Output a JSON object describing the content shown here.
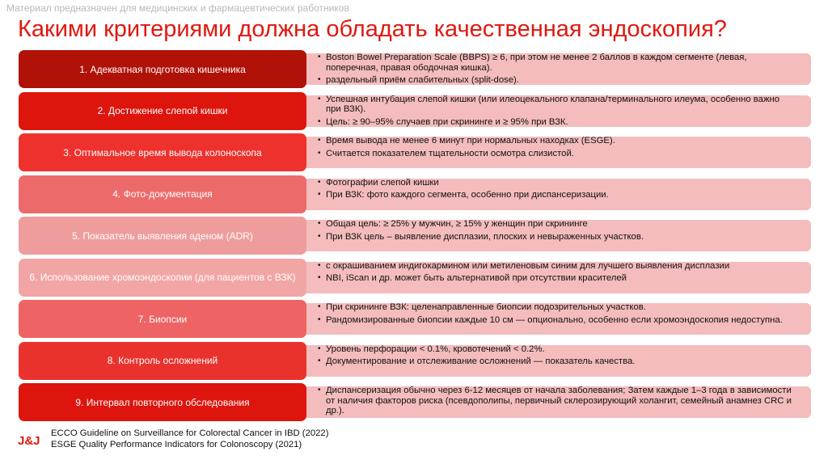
{
  "disclaimer": "Материал предназначен для медицинских и фармацевтических работников",
  "title": "Какими критериями должна обладать качественная эндоскопия?",
  "rows": [
    {
      "label": "1. Адекватная подготовка кишечника",
      "color": "#b01208",
      "bullets": [
        "Boston Bowel Preparation Scale (BBPS) ≥ 6, при этом не менее 2 баллов в каждом сегменте (левая, поперечная, правая ободочная кишка).",
        "раздельный приём слабительных (split-dose)."
      ]
    },
    {
      "label": "2. Достижение слепой кишки",
      "color": "#dd150d",
      "bullets": [
        "Успешная интубация слепой кишки (или илеоцекального клапана/терминального илеума, особенно важно при ВЗК).",
        "Цель: ≥ 90–95% случаев при скрининге и ≥ 95% при ВЗК."
      ]
    },
    {
      "label": "3. Оптимальное время вывода колоноскопа",
      "color": "#ee312c",
      "bullets": [
        "Время вывода не менее 6 минут при нормальных находках (ESGE).",
        "Считается показателем тщательности осмотра слизистой."
      ]
    },
    {
      "label": "4. Фото-документация",
      "color": "#ec6b6a",
      "bullets": [
        "Фотографии слепой кишки",
        "При ВЗК: фото каждого сегмента, особенно при диспансеризации."
      ]
    },
    {
      "label": "5. Показатель выявления аденом (ADR)",
      "color": "#ef9c9c",
      "bullets": [
        "Общая цель: ≥ 25% у мужчин, ≥ 15% у женщин при скрининге",
        "При ВЗК цель – выявление дисплазии, плоских и невыраженных участков."
      ]
    },
    {
      "label": "6. Использование хромоэндоскопии (для пациентов с ВЗК)",
      "color": "#f2a5a5",
      "bullets": [
        "с окрашиванием индигокармином или метиленовым синим для лучшего выявления дисплазии",
        "NBI, iScan и др. может быть альтернативой при отсутствии красителей"
      ]
    },
    {
      "label": "7. Биопсии",
      "color": "#ee6363",
      "bullets": [
        "При скрининге ВЗК: целенаправленные биопсии подозрительных участков.",
        "Рандомизированные биопсии каждые 10 см — опционально, особенно если хромоэндоскопия недоступна."
      ]
    },
    {
      "label": "8. Контроль осложнений",
      "color": "#ea322d",
      "bullets": [
        "Уровень перфорации < 0.1%, кровотечений < 0.2%.",
        "Документирование и отслеживание осложнений — показатель качества."
      ]
    },
    {
      "label": "9. Интервал повторного обследования",
      "color": "#dd150d",
      "bullets": [
        "Диспансеризация обычно через 6-12 месяцев от начала заболевания;     Затем каждые 1–3 года в зависимости от наличия факторов риска (псевдополипы, первичный склерозирующий холангит, семейный анамнез CRC и др.)."
      ]
    }
  ],
  "logo": "J&J",
  "references": [
    "ECCO Guideline on Surveillance for Colorectal Cancer in IBD (2022)",
    "ESGE Quality Performance Indicators for Colonoscopy (2021)"
  ]
}
